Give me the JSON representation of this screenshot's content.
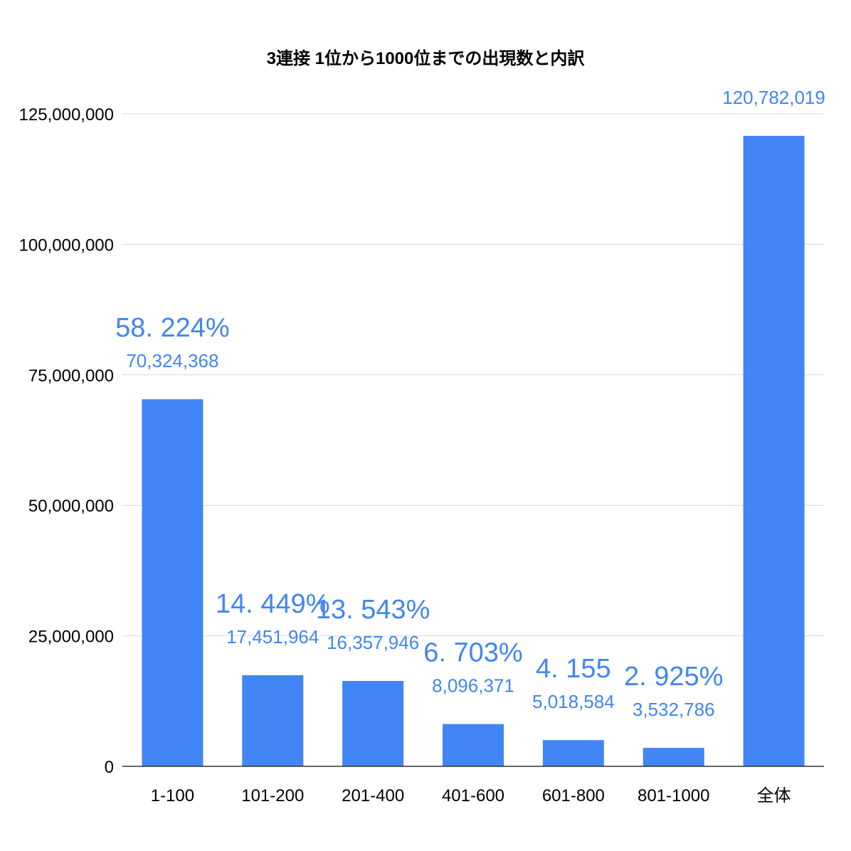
{
  "colors": {
    "bar": "#4285f4",
    "label": "#4285f4",
    "grid": "#d9d9d9",
    "baseline": "#333333"
  },
  "chart_data": {
    "type": "bar",
    "title": "3連接 1位から1000位までの出現数と内訳",
    "xlabel": "",
    "ylabel": "",
    "ylim": [
      0,
      125000000
    ],
    "yticks": [
      0,
      25000000,
      50000000,
      75000000,
      100000000,
      125000000
    ],
    "ytick_labels": [
      "0",
      "25,000,000",
      "50,000,000",
      "75,000,000",
      "100,000,000",
      "125,000,000"
    ],
    "grid": true,
    "legend": "none",
    "categories": [
      "1-100",
      "101-200",
      "201-400",
      "401-600",
      "601-800",
      "801-1000",
      "全体"
    ],
    "values": [
      70324368,
      17451964,
      16357946,
      8096371,
      5018584,
      3532786,
      120782019
    ],
    "value_labels": [
      "70,324,368",
      "17,451,964",
      "16,357,946",
      "8,096,371",
      "5,018,584",
      "3,532,786",
      "120,782,019"
    ],
    "percent_labels": [
      "58. 224%",
      "14. 449%",
      "13. 543%",
      "6. 703%",
      "4. 155",
      "2. 925%",
      ""
    ]
  }
}
